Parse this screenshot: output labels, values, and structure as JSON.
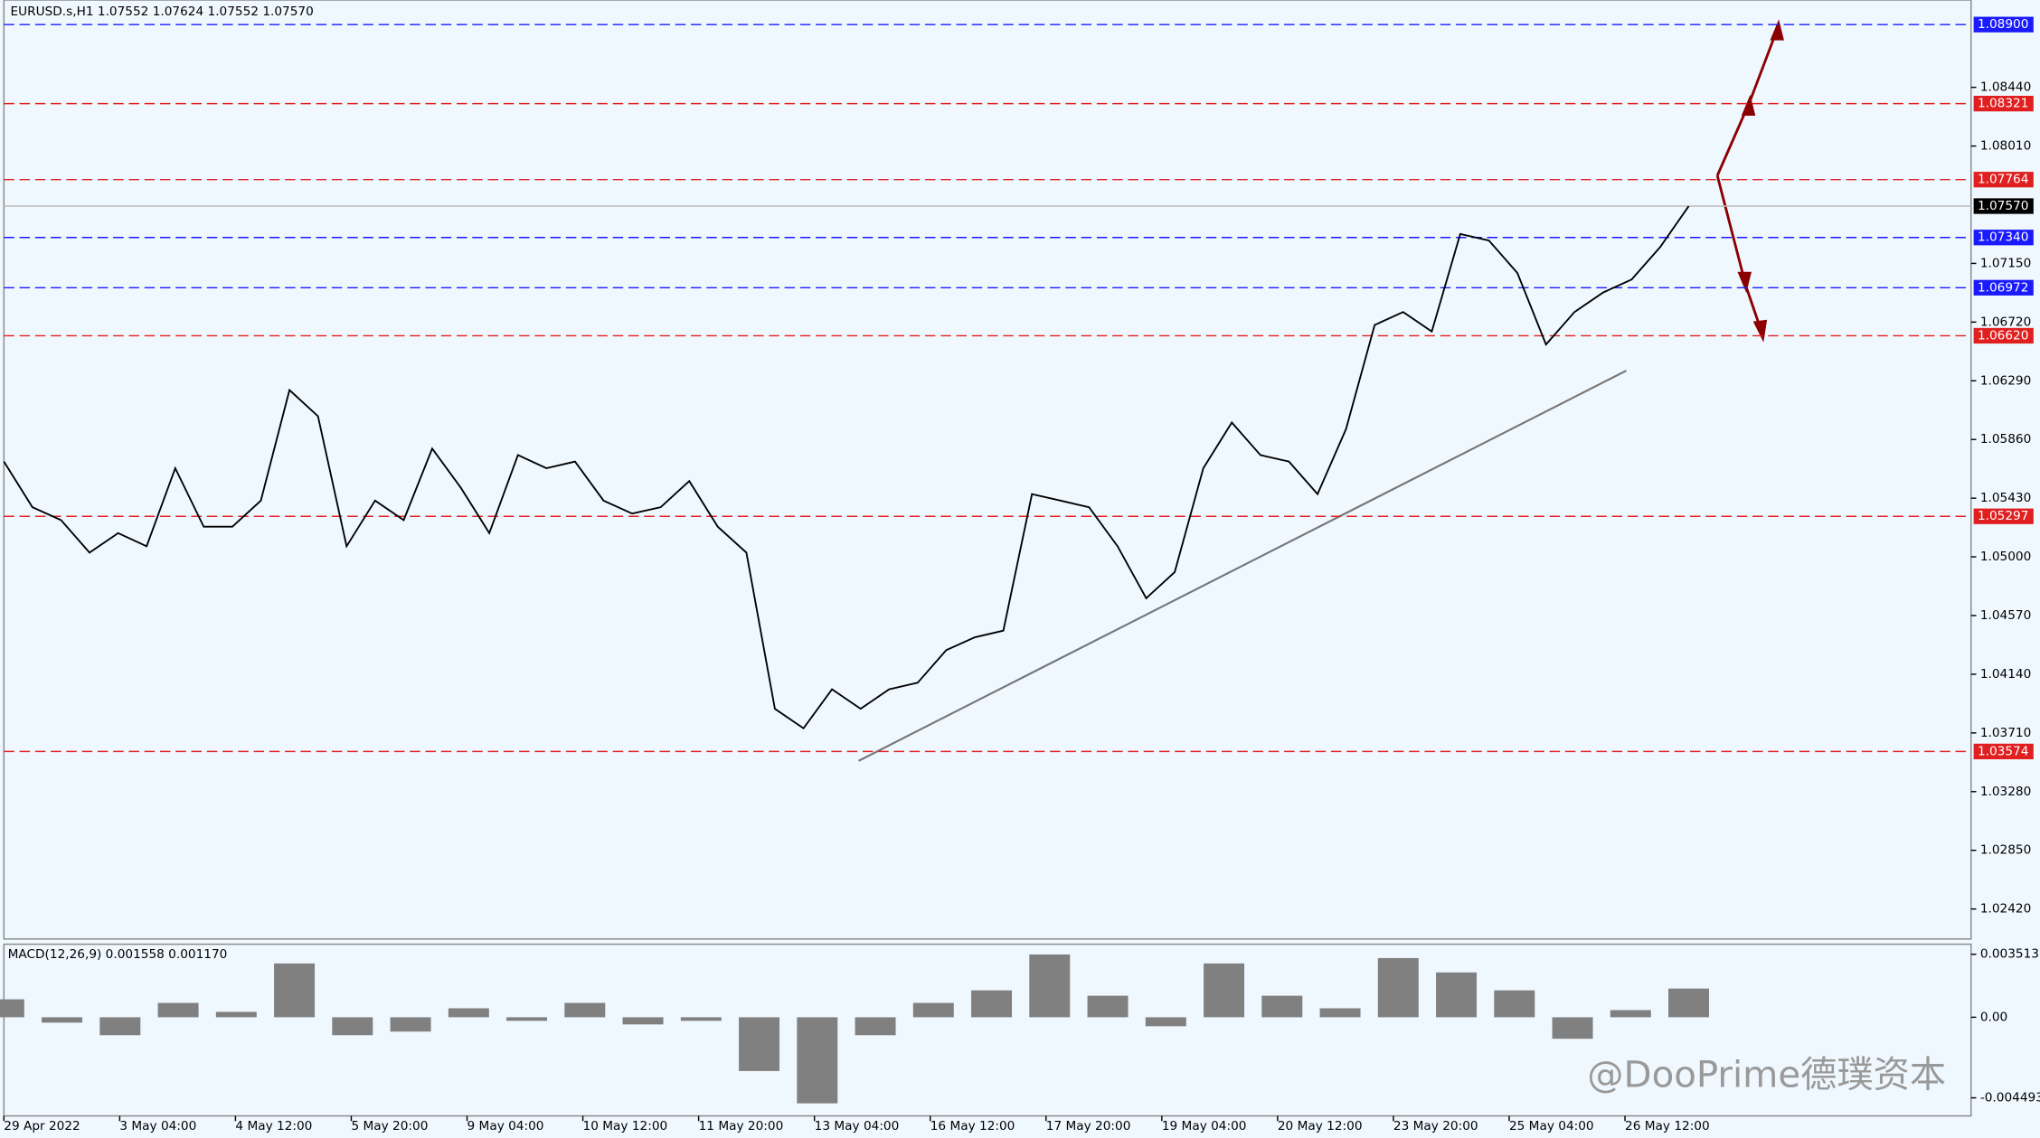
{
  "chart_data": [
    {
      "type": "line",
      "title": "EURUSD.s,H1  1.07552 1.07624 1.07552 1.07570",
      "x_labels": [
        "29 Apr 2022",
        "3 May 04:00",
        "4 May 12:00",
        "5 May 20:00",
        "9 May 04:00",
        "10 May 12:00",
        "11 May 20:00",
        "13 May 04:00",
        "16 May 12:00",
        "17 May 20:00",
        "19 May 04:00",
        "20 May 12:00",
        "23 May 20:00",
        "25 May 04:00",
        "26 May 12:00"
      ],
      "series": [
        {
          "name": "EURUSD.s",
          "color": "#000000",
          "values": [
            1.05698,
            1.05364,
            1.05269,
            1.05031,
            1.05174,
            1.05078,
            1.0565,
            1.05221,
            1.05221,
            1.05412,
            1.06222,
            1.06031,
            1.05078,
            1.05412,
            1.05269,
            1.05793,
            1.05507,
            1.05174,
            1.05746,
            1.0565,
            1.05698,
            1.05412,
            1.05317,
            1.05364,
            1.05555,
            1.05221,
            1.05031,
            1.03887,
            1.03744,
            1.0403,
            1.03887,
            1.0403,
            1.04078,
            1.04316,
            1.04411,
            1.04459,
            1.0546,
            1.05412,
            1.05364,
            1.05078,
            1.04697,
            1.04888,
            1.0565,
            1.05984,
            1.05746,
            1.05698,
            1.0546,
            1.05936,
            1.06699,
            1.06794,
            1.06651,
            1.07366,
            1.07318,
            1.0708,
            1.06556,
            1.06794,
            1.06937,
            1.07032,
            1.0727,
            1.0757
          ]
        }
      ],
      "ylim": [
        1.022,
        1.0908
      ],
      "yticks": [
        {
          "value": 1.0844,
          "label": "1.08440"
        },
        {
          "value": 1.0801,
          "label": "1.08010"
        },
        {
          "value": 1.0715,
          "label": "1.07150"
        },
        {
          "value": 1.0672,
          "label": "1.06720"
        },
        {
          "value": 1.0629,
          "label": "1.06290"
        },
        {
          "value": 1.0586,
          "label": "1.05860"
        },
        {
          "value": 1.0543,
          "label": "1.05430"
        },
        {
          "value": 1.05,
          "label": "1.05000"
        },
        {
          "value": 1.0457,
          "label": "1.04570"
        },
        {
          "value": 1.0414,
          "label": "1.04140"
        },
        {
          "value": 1.0371,
          "label": "1.03710"
        },
        {
          "value": 1.0328,
          "label": "1.03280"
        },
        {
          "value": 1.0285,
          "label": "1.02850"
        },
        {
          "value": 1.0242,
          "label": "1.02420"
        }
      ],
      "levels": [
        {
          "value": 1.089,
          "label": "1.08900",
          "color": "#1a1aff"
        },
        {
          "value": 1.08321,
          "label": "1.08321",
          "color": "#e02020"
        },
        {
          "value": 1.07764,
          "label": "1.07764",
          "color": "#e02020"
        },
        {
          "value": 1.0757,
          "label": "1.07570",
          "color": "#000000"
        },
        {
          "value": 1.0734,
          "label": "1.07340",
          "color": "#1a1aff"
        },
        {
          "value": 1.06972,
          "label": "1.06972",
          "color": "#1a1aff"
        },
        {
          "value": 1.0662,
          "label": "1.06620",
          "color": "#e02020"
        },
        {
          "value": 1.05297,
          "label": "1.05297",
          "color": "#e02020"
        },
        {
          "value": 1.03574,
          "label": "1.03574",
          "color": "#e02020"
        }
      ],
      "watermark": "@DooPrime德璞资本"
    },
    {
      "type": "bar",
      "title": "MACD(12,26,9) 0.001558 0.001170",
      "color": "#808080",
      "values": [
        0.001,
        -0.0003,
        -0.001,
        0.0008,
        0.0003,
        0.003,
        -0.001,
        -0.0008,
        0.0005,
        -0.0002,
        0.0008,
        -0.0004,
        -0.0002,
        -0.003,
        -0.0048,
        -0.001,
        0.0008,
        0.0015,
        0.0035,
        0.0012,
        -0.0005,
        0.003,
        0.0012,
        0.0005,
        0.0033,
        0.0025,
        0.0015,
        -0.0012,
        0.0004,
        0.0016
      ],
      "ylim": [
        -0.0055,
        0.004
      ],
      "yticks": [
        0.003513,
        {
          "value": 0,
          "label": "0.00"
        },
        -0.004493
      ]
    }
  ]
}
